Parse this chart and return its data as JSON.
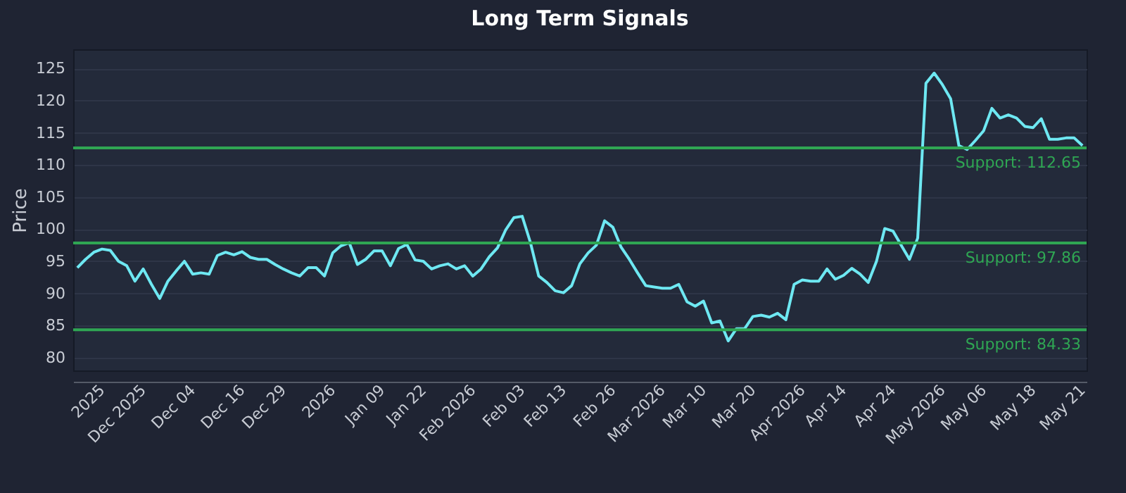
{
  "chart_data": {
    "type": "line",
    "title": "Long Term Signals",
    "ylabel": "Price",
    "categories": [
      null,
      null,
      null,
      "2025",
      null,
      null,
      null,
      null,
      "Dec 2025",
      null,
      null,
      null,
      null,
      null,
      "Dec 04",
      null,
      null,
      null,
      null,
      null,
      "Dec 16",
      null,
      null,
      null,
      null,
      "Dec 29",
      null,
      null,
      null,
      null,
      null,
      "2026",
      null,
      null,
      null,
      null,
      null,
      "Jan 09",
      null,
      null,
      null,
      null,
      "Jan 22",
      null,
      null,
      null,
      null,
      null,
      "Feb 2026",
      null,
      null,
      null,
      null,
      null,
      "Feb 03",
      null,
      null,
      null,
      null,
      "Feb 13",
      null,
      null,
      null,
      null,
      null,
      "Feb 26",
      null,
      null,
      null,
      null,
      null,
      "Mar 2026",
      null,
      null,
      null,
      null,
      "Mar 10",
      null,
      null,
      null,
      null,
      null,
      "Mar 20",
      null,
      null,
      null,
      null,
      null,
      "Apr 2026",
      null,
      null,
      null,
      null,
      "Apr 14",
      null,
      null,
      null,
      null,
      null,
      "Apr 24",
      null,
      null,
      null,
      null,
      null,
      "May 2026",
      null,
      null,
      null,
      null,
      "May 06",
      null,
      null,
      null,
      null,
      null,
      "May 18",
      null,
      null,
      null,
      null,
      null,
      "May 21"
    ],
    "series": [
      {
        "color": "#6ee8f2",
        "values": [
          94.0,
          95.3,
          96.4,
          96.9,
          96.7,
          95.0,
          94.3,
          91.9,
          93.8,
          91.4,
          89.2,
          91.9,
          93.5,
          95.0,
          93.0,
          93.2,
          93.0,
          95.9,
          96.4,
          96.0,
          96.5,
          95.6,
          95.3,
          95.3,
          94.5,
          93.8,
          93.2,
          92.7,
          94.0,
          94.0,
          92.7,
          96.3,
          97.4,
          97.9,
          94.5,
          95.3,
          96.6,
          96.6,
          94.3,
          97.0,
          97.6,
          95.2,
          95.0,
          93.8,
          94.3,
          94.6,
          93.8,
          94.3,
          92.7,
          93.8,
          95.7,
          97.1,
          99.9,
          101.8,
          102.0,
          97.9,
          92.7,
          91.7,
          90.4,
          90.1,
          91.2,
          94.6,
          96.3,
          97.5,
          101.3,
          100.3,
          97.2,
          95.3,
          93.2,
          91.2,
          91.0,
          90.8,
          90.8,
          91.4,
          88.7,
          88.0,
          88.8,
          85.4,
          85.7,
          82.6,
          84.5,
          84.5,
          86.4,
          86.6,
          86.3,
          86.9,
          85.9,
          91.4,
          92.1,
          91.9,
          91.9,
          93.8,
          92.2,
          92.8,
          93.9,
          93.0,
          91.7,
          95.0,
          100.1,
          99.7,
          97.5,
          95.3,
          98.6,
          122.7,
          124.3,
          122.5,
          120.3,
          113.0,
          112.4,
          113.8,
          115.3,
          118.8,
          117.3,
          117.8,
          117.3,
          116.0,
          115.8,
          117.2,
          114.0,
          114.0,
          114.2,
          114.2,
          113.0
        ]
      }
    ],
    "ylim": [
      78,
      128
    ],
    "yticks": [
      80,
      85,
      90,
      95,
      100,
      105,
      110,
      115,
      120,
      125
    ],
    "grid": "y",
    "ref_lines": [
      {
        "axis": "y",
        "value": 112.65,
        "label": "Support: 112.65",
        "color": "#2fa653"
      },
      {
        "axis": "y",
        "value": 97.86,
        "label": "Support: 97.86",
        "color": "#2fa653"
      },
      {
        "axis": "y",
        "value": 84.33,
        "label": "Support: 84.33",
        "color": "#2fa653"
      }
    ]
  }
}
